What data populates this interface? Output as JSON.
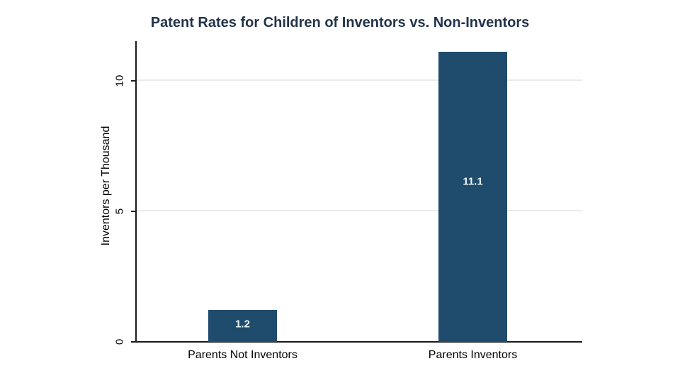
{
  "chart": {
    "title": "Patent Rates for Children of Inventors vs. Non-Inventors",
    "ylabel": "Inventors per Thousand"
  },
  "chart_data": {
    "type": "bar",
    "title": "Patent Rates for Children of Inventors vs. Non-Inventors",
    "categories": [
      "Parents Not Inventors",
      "Parents Inventors"
    ],
    "values": [
      1.2,
      11.1
    ],
    "bar_labels": [
      "1.2",
      "11.1"
    ],
    "xlabel": "",
    "ylabel": "Inventors per Thousand",
    "ylim": [
      0,
      11.5
    ],
    "yticks": [
      0,
      5,
      10
    ],
    "grid": true,
    "gridlines_at": [
      5,
      10
    ],
    "legend": "none",
    "colors": {
      "bar_fill": "#1f4c6d",
      "bar_label_text": "#ecf5f3",
      "title_text": "#22344a",
      "axis_line": "#1a1a1a",
      "gridline": "#e9ebee",
      "tick_text": "#000000",
      "background": "#ffffff"
    }
  }
}
